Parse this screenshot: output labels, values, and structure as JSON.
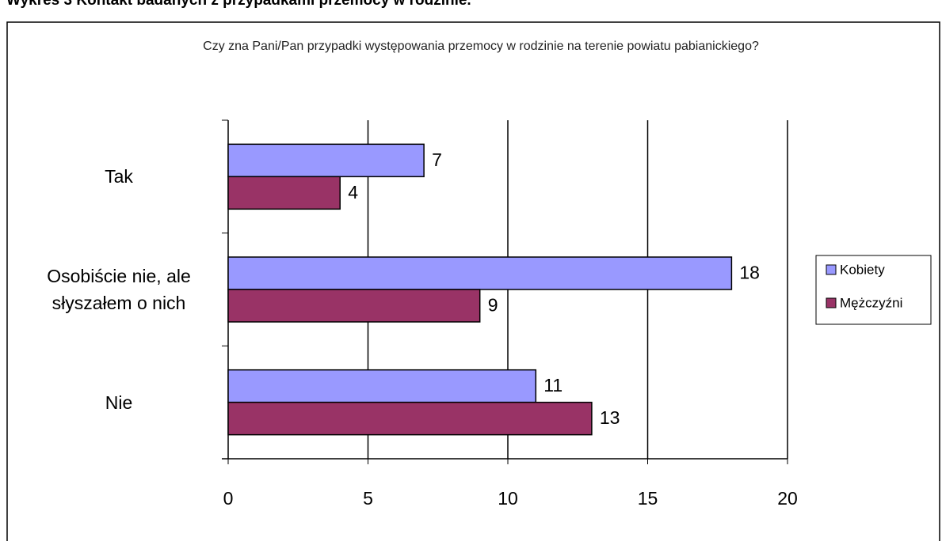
{
  "heading": "Wykres 3 Kontakt badanych z przypadkami przemocy w rodzinie.",
  "chart_data": {
    "type": "hbar",
    "title": "Czy zna Pani/Pan przypadki występowania przemocy w rodzinie na terenie powiatu pabianickiego?",
    "categories": [
      "Tak",
      "Osobiście nie, ale słyszałem o nich",
      "Nie"
    ],
    "series": [
      {
        "name": "Kobiety",
        "color": "#9999ff",
        "values": [
          7,
          18,
          11
        ]
      },
      {
        "name": "Mężczyźni",
        "color": "#993366",
        "values": [
          4,
          9,
          13
        ]
      }
    ],
    "xlim": [
      0,
      20
    ],
    "xticks": [
      0,
      5,
      10,
      15,
      20
    ],
    "grid": true,
    "legend": "right"
  }
}
